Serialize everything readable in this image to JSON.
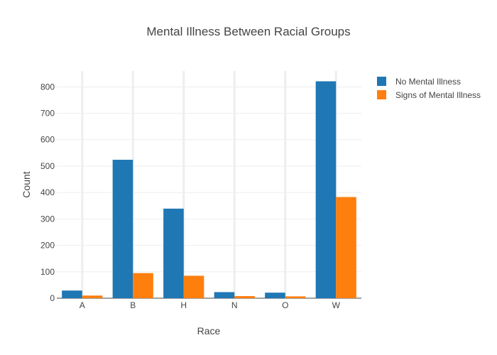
{
  "chart_data": {
    "type": "bar",
    "title": "Mental Illness Between Racial Groups",
    "xlabel": "Race",
    "ylabel": "Count",
    "categories": [
      "A",
      "B",
      "H",
      "N",
      "O",
      "W"
    ],
    "series": [
      {
        "name": "No Mental Illness",
        "color": "#1f77b4",
        "values": [
          29,
          524,
          339,
          23,
          21,
          821
        ]
      },
      {
        "name": "Signs of Mental Illness",
        "color": "#ff7f0e",
        "values": [
          10,
          95,
          85,
          8,
          7,
          383
        ]
      }
    ],
    "ylim": [
      0,
      860
    ],
    "yticks": [
      0,
      100,
      200,
      300,
      400,
      500,
      600,
      700,
      800
    ],
    "grid": true,
    "legend_position": "top-right"
  }
}
